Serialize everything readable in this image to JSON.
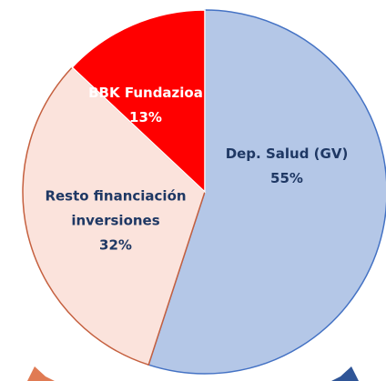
{
  "chart_data": {
    "type": "pie",
    "categories": [
      "Dep. Salud (GV)",
      "Resto financiación inversiones",
      "BBK Fundazioa"
    ],
    "values": [
      55,
      32,
      13
    ],
    "value_labels": [
      "55%",
      "32%",
      "13%"
    ],
    "colors": [
      "#b4c7e7",
      "#fbe3dc",
      "#ff0000"
    ],
    "edge_colors": [
      "#4472c4",
      "#c5603f",
      "#ffffff"
    ],
    "label_colors": [
      "#1f3864",
      "#1f3864",
      "#ffffff"
    ]
  }
}
